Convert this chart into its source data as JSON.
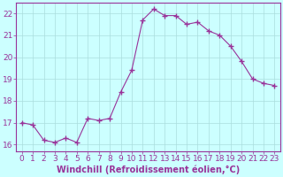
{
  "x": [
    0,
    1,
    2,
    3,
    4,
    5,
    6,
    7,
    8,
    9,
    10,
    11,
    12,
    13,
    14,
    15,
    16,
    17,
    18,
    19,
    20,
    21,
    22,
    23
  ],
  "y": [
    17.0,
    16.9,
    16.2,
    16.1,
    16.3,
    16.1,
    17.2,
    17.1,
    17.2,
    18.4,
    19.4,
    21.7,
    22.2,
    21.9,
    21.9,
    21.5,
    21.6,
    21.2,
    21.0,
    20.5,
    19.8,
    19.0,
    18.8,
    18.7
  ],
  "line_color": "#993399",
  "marker": "+",
  "marker_size": 4,
  "bg_color": "#ccffff",
  "grid_color": "#aadddd",
  "tick_color": "#993399",
  "label_color": "#993399",
  "xlabel": "Windchill (Refroidissement éolien,°C)",
  "ylim": [
    15.7,
    22.5
  ],
  "xlim": [
    -0.5,
    23.5
  ],
  "yticks": [
    16,
    17,
    18,
    19,
    20,
    21,
    22
  ],
  "xticks": [
    0,
    1,
    2,
    3,
    4,
    5,
    6,
    7,
    8,
    9,
    10,
    11,
    12,
    13,
    14,
    15,
    16,
    17,
    18,
    19,
    20,
    21,
    22,
    23
  ],
  "font_size": 6.5,
  "xlabel_fontsize": 7
}
